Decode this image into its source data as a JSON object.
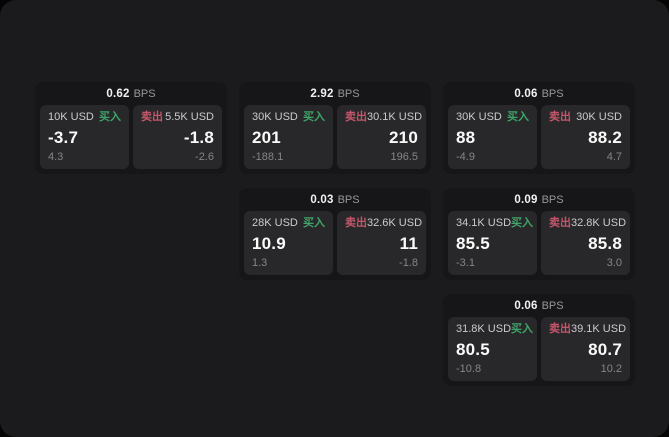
{
  "labels": {
    "bps_unit": "BPS",
    "buy": "买入",
    "sell": "卖出"
  },
  "colors": {
    "buy_green": "#3ea468",
    "sell_red": "#c2566a",
    "page_bg": "#1b1b1d",
    "card_bg": "#161618",
    "panel_bg": "#28282a"
  },
  "cards": [
    {
      "bps": "0.62",
      "buy": {
        "amount": "10K USD",
        "value": "-3.7",
        "delta": "4.3"
      },
      "sell": {
        "amount": "5.5K USD",
        "value": "-1.8",
        "delta": "-2.6"
      }
    },
    {
      "bps": "2.92",
      "buy": {
        "amount": "30K USD",
        "value": "201",
        "delta": "-188.1"
      },
      "sell": {
        "amount": "30.1K USD",
        "value": "210",
        "delta": "196.5"
      }
    },
    {
      "bps": "0.06",
      "buy": {
        "amount": "30K USD",
        "value": "88",
        "delta": "-4.9"
      },
      "sell": {
        "amount": "30K USD",
        "value": "88.2",
        "delta": "4.7"
      }
    },
    {
      "bps": "0.03",
      "buy": {
        "amount": "28K USD",
        "value": "10.9",
        "delta": "1.3"
      },
      "sell": {
        "amount": "32.6K USD",
        "value": "11",
        "delta": "-1.8"
      }
    },
    {
      "bps": "0.09",
      "buy": {
        "amount": "34.1K USD",
        "value": "85.5",
        "delta": "-3.1"
      },
      "sell": {
        "amount": "32.8K USD",
        "value": "85.8",
        "delta": "3.0"
      }
    },
    {
      "bps": "0.06",
      "buy": {
        "amount": "31.8K USD",
        "value": "80.5",
        "delta": "-10.8"
      },
      "sell": {
        "amount": "39.1K USD",
        "value": "80.7",
        "delta": "10.2"
      }
    }
  ]
}
